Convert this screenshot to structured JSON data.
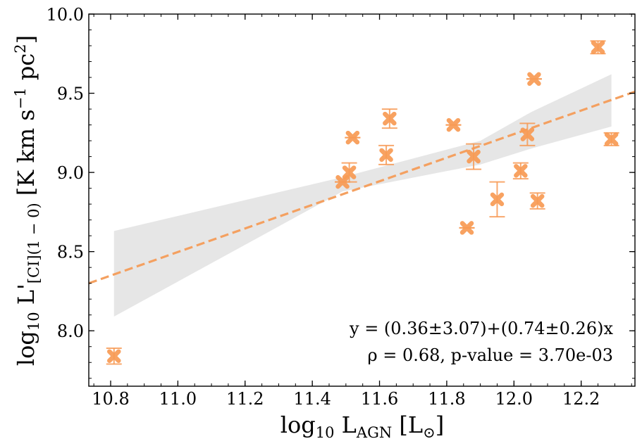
{
  "chart_data": {
    "type": "scatter",
    "title": "",
    "xlabel": {
      "prefix": "log",
      "sub": "10",
      "main": " L",
      "main_sub": "AGN",
      "unit": " [L",
      "unit_sub": "⊙",
      "unit_end": "]"
    },
    "ylabel": {
      "prefix": "log",
      "sub": "10",
      "main": " L'",
      "main_sub": "[CI](1 − 0)",
      "unit": " [K km s",
      "unit_sup1": "−1",
      "unit_mid": " pc",
      "unit_sup2": "2",
      "unit_end": "]"
    },
    "xlim": [
      10.735,
      12.36
    ],
    "ylim": [
      7.65,
      10.0
    ],
    "x_ticks": [
      10.8,
      11.0,
      11.2,
      11.4,
      11.6,
      11.8,
      12.0,
      12.2
    ],
    "x_tick_labels": [
      "10.8",
      "11.0",
      "11.2",
      "11.4",
      "11.6",
      "11.8",
      "12.0",
      "12.2"
    ],
    "y_ticks": [
      8.0,
      8.5,
      9.0,
      9.5,
      10.0
    ],
    "y_tick_labels": [
      "8.0",
      "8.5",
      "9.0",
      "9.5",
      "10.0"
    ],
    "colors": {
      "marker": "#f79a54",
      "fit": "#f4a060",
      "band": "#e6e6e6"
    },
    "points": [
      {
        "x": 10.81,
        "y": 7.84,
        "err": 0.05
      },
      {
        "x": 11.49,
        "y": 8.94,
        "err": 0.0
      },
      {
        "x": 11.51,
        "y": 9.0,
        "err": 0.06
      },
      {
        "x": 11.52,
        "y": 9.22,
        "err": 0.0
      },
      {
        "x": 11.62,
        "y": 9.11,
        "err": 0.06
      },
      {
        "x": 11.63,
        "y": 9.34,
        "err": 0.06
      },
      {
        "x": 11.82,
        "y": 9.3,
        "err": 0.0
      },
      {
        "x": 11.86,
        "y": 8.65,
        "err": 0.0
      },
      {
        "x": 11.88,
        "y": 9.1,
        "err": 0.08
      },
      {
        "x": 11.95,
        "y": 8.83,
        "err": 0.11
      },
      {
        "x": 12.02,
        "y": 9.01,
        "err": 0.05
      },
      {
        "x": 12.04,
        "y": 9.24,
        "err": 0.07
      },
      {
        "x": 12.06,
        "y": 9.59,
        "err": 0.0
      },
      {
        "x": 12.07,
        "y": 8.82,
        "err": 0.05
      },
      {
        "x": 12.25,
        "y": 9.79,
        "err": 0.04
      },
      {
        "x": 12.29,
        "y": 9.21,
        "err": 0.04
      }
    ],
    "fit_line": {
      "x": [
        10.735,
        12.36
      ],
      "y": [
        8.3,
        9.51
      ]
    },
    "confidence_band": {
      "upper": [
        [
          10.81,
          8.63
        ],
        [
          11.49,
          8.97
        ],
        [
          11.9,
          9.2
        ],
        [
          12.05,
          9.38
        ],
        [
          12.29,
          9.62
        ]
      ],
      "lower": [
        [
          10.81,
          8.09
        ],
        [
          11.49,
          8.88
        ],
        [
          11.9,
          9.05
        ],
        [
          12.05,
          9.15
        ],
        [
          12.29,
          9.29
        ]
      ]
    },
    "annotations": {
      "equation": "y = (0.36±3.07)+(0.74±0.26)x",
      "stats": "ρ = 0.68, p-value = 3.70e-03"
    }
  }
}
